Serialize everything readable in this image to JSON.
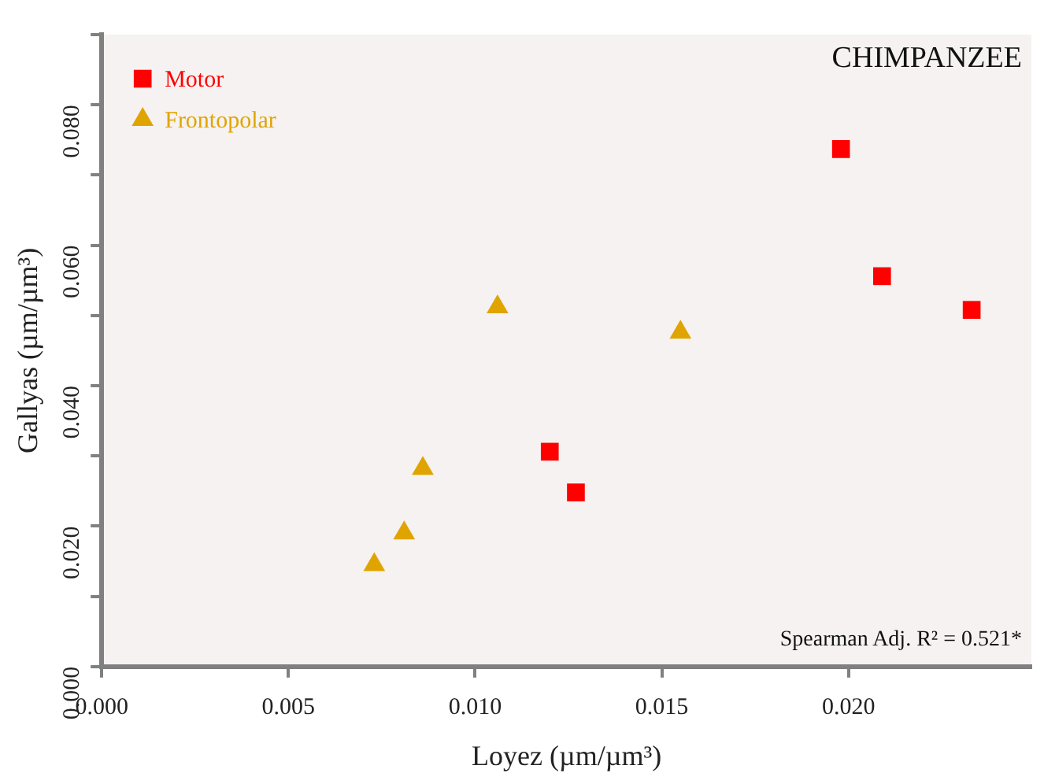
{
  "chart_data": {
    "type": "scatter",
    "xlabel": "Loyez (µm/µm³)",
    "ylabel": "Gallyas (µm/µm³)",
    "annotations": [
      "CHIMPANZEE",
      "Spearman Adj. R² = 0.521*"
    ],
    "legend": "top left",
    "grid": false,
    "xlim": [
      0,
      0.0249
    ],
    "xticks": [
      {
        "value": 0,
        "label": "0.000"
      },
      {
        "value": 0.005,
        "label": "0.005"
      },
      {
        "value": 0.01,
        "label": "0.010"
      },
      {
        "value": 0.015,
        "label": "0.015"
      },
      {
        "value": 0.02,
        "label": "0.020"
      }
    ],
    "ylim": [
      0,
      0.09
    ],
    "yticks": [
      {
        "value": 0,
        "label": "0.000"
      },
      {
        "value": 0.01,
        "label": null
      },
      {
        "value": 0.02,
        "label": "0.020"
      },
      {
        "value": 0.03,
        "label": null
      },
      {
        "value": 0.04,
        "label": "0.040"
      },
      {
        "value": 0.05,
        "label": null
      },
      {
        "value": 0.06,
        "label": "0.060"
      },
      {
        "value": 0.07,
        "label": null
      },
      {
        "value": 0.08,
        "label": "0.080"
      },
      {
        "value": 0.09,
        "label": null
      }
    ],
    "series": [
      {
        "name": "Motor",
        "color": "#ff0000",
        "marker": "square",
        "x": [
          0.0198,
          0.0209,
          0.0233,
          0.012,
          0.0127
        ],
        "values": [
          0.0737,
          0.0556,
          0.0508,
          0.0306,
          0.0248
        ]
      },
      {
        "name": "Frontopolar",
        "color": "#e0a400",
        "marker": "triangle",
        "x": [
          0.0106,
          0.0155,
          0.0086,
          0.0081,
          0.0073
        ],
        "values": [
          0.0512,
          0.0476,
          0.0282,
          0.019,
          0.0145
        ]
      }
    ]
  }
}
